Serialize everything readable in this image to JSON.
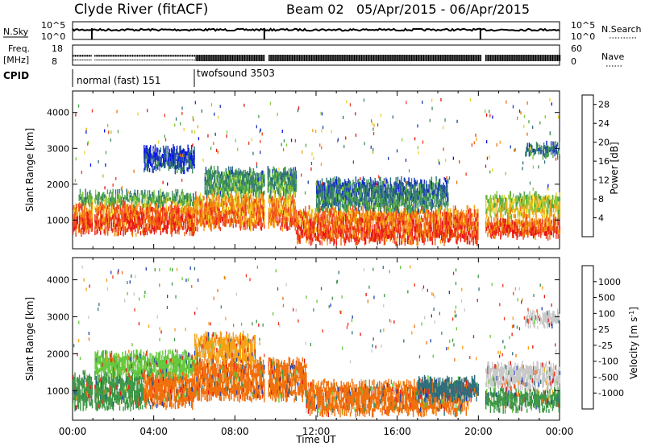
{
  "header": {
    "title": "Clyde River (fitACF)",
    "beam": "Beam 02",
    "date_range": "05/Apr/2015 - 06/Apr/2015"
  },
  "panels": {
    "nsky_label": "N.Sky",
    "nsky_ticks": [
      "10^5",
      "10^0"
    ],
    "nsearch_label": "N.Search",
    "nsearch_ticks": [
      "10^5",
      "10^0"
    ],
    "freq_label_1": "Freq.",
    "freq_label_2": "[MHz]",
    "freq_ticks": [
      "18",
      "8"
    ],
    "nave_label": "Nave",
    "nave_ticks": [
      "60",
      "0"
    ],
    "cpid_label": "CPID",
    "cpid_1": "normal (fast) 151",
    "cpid_2": "twofsound 3503"
  },
  "chart_data": [
    {
      "type": "heatmap",
      "name": "power",
      "ylabel": "Slant Range [km]",
      "xlabel": "",
      "xlim": [
        0,
        24
      ],
      "ylim": [
        200,
        4600
      ],
      "yticks": [
        "1000",
        "2000",
        "3000",
        "4000"
      ],
      "colorbar": {
        "label": "Power [dB]",
        "ticks": [
          "28",
          "24",
          "20",
          "16",
          "12",
          "8",
          "4"
        ],
        "range": [
          0,
          30
        ],
        "colors": [
          "#0a14e6",
          "#1e3cb4",
          "#2d6e7d",
          "#3c8a5a",
          "#4aa84a",
          "#8cc83c",
          "#e6d228",
          "#f5a014",
          "#f06e0a",
          "#ef3a1e",
          "#e61414"
        ]
      },
      "bands": [
        {
          "t0": 0.0,
          "t1": 6.0,
          "r0": 650,
          "r1": 1450,
          "level": 26
        },
        {
          "t0": 0.3,
          "t1": 6.0,
          "r0": 1450,
          "r1": 1750,
          "level": 13
        },
        {
          "t0": 6.0,
          "t1": 11.0,
          "r0": 800,
          "r1": 1700,
          "level": 24
        },
        {
          "t0": 6.5,
          "t1": 11.0,
          "r0": 1700,
          "r1": 2400,
          "level": 12
        },
        {
          "t0": 11.0,
          "t1": 20.0,
          "r0": 400,
          "r1": 1300,
          "level": 26
        },
        {
          "t0": 12.0,
          "t1": 18.5,
          "r0": 1300,
          "r1": 2100,
          "level": 10
        },
        {
          "t0": 20.3,
          "t1": 24.0,
          "r0": 550,
          "r1": 1050,
          "level": 26
        },
        {
          "t0": 20.3,
          "t1": 24.0,
          "r0": 1150,
          "r1": 1700,
          "level": 18
        },
        {
          "t0": 22.3,
          "t1": 24.0,
          "r0": 2800,
          "r1": 3100,
          "level": 9
        },
        {
          "t0": 3.5,
          "t1": 6.0,
          "r0": 2400,
          "r1": 3000,
          "level": 6
        }
      ]
    },
    {
      "type": "heatmap",
      "name": "velocity",
      "ylabel": "Slant Range [km]",
      "xlabel": "Time UT",
      "xlim": [
        0,
        24
      ],
      "ylim": [
        200,
        4600
      ],
      "xticks": [
        "00:00",
        "04:00",
        "08:00",
        "12:00",
        "16:00",
        "20:00",
        "00:00"
      ],
      "yticks": [
        "1000",
        "2000",
        "3000",
        "4000"
      ],
      "colorbar": {
        "label": "Velocity [m s^-1]",
        "ticks": [
          "1000",
          "500",
          "100",
          "25",
          "-25",
          "-100",
          "-500",
          "-1000"
        ],
        "colors": [
          "#1e3cb4",
          "#2d6e7d",
          "#3c9646",
          "#64c83c",
          "#c8c8c8",
          "#f5a014",
          "#f06e0a",
          "#ef3a1e",
          "#e61414"
        ]
      },
      "bands": [
        {
          "t0": 0.0,
          "t1": 3.5,
          "r0": 550,
          "r1": 1450,
          "color": "#3c9646"
        },
        {
          "t0": 3.5,
          "t1": 6.0,
          "r0": 600,
          "r1": 1500,
          "color": "#f06e0a"
        },
        {
          "t0": 1.0,
          "t1": 6.0,
          "r0": 1450,
          "r1": 2000,
          "color": "#64c83c"
        },
        {
          "t0": 6.0,
          "t1": 11.5,
          "r0": 800,
          "r1": 1800,
          "color": "#f06e0a"
        },
        {
          "t0": 6.0,
          "t1": 9.0,
          "r0": 1800,
          "r1": 2500,
          "color": "#f5a014"
        },
        {
          "t0": 11.5,
          "t1": 19.5,
          "r0": 400,
          "r1": 1200,
          "color": "#f06e0a"
        },
        {
          "t0": 17.0,
          "t1": 20.0,
          "r0": 800,
          "r1": 1300,
          "color": "#2d6e7d"
        },
        {
          "t0": 20.3,
          "t1": 24.0,
          "r0": 500,
          "r1": 1000,
          "color": "#3c9646"
        },
        {
          "t0": 20.3,
          "t1": 24.0,
          "r0": 1100,
          "r1": 1700,
          "color": "#c8c8c8"
        },
        {
          "t0": 22.3,
          "t1": 24.0,
          "r0": 2800,
          "r1": 3100,
          "color": "#c8c8c8"
        }
      ]
    }
  ]
}
